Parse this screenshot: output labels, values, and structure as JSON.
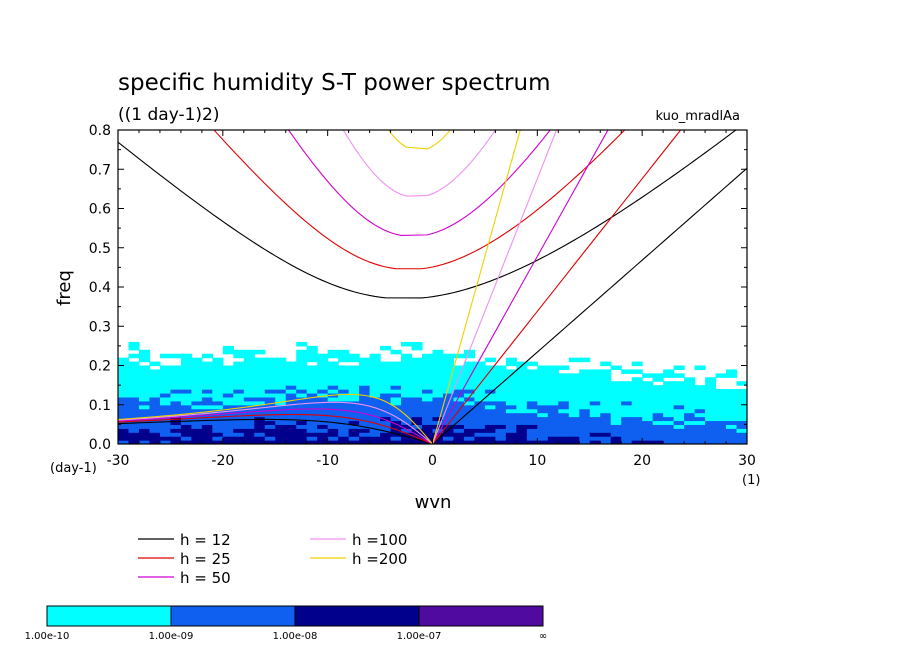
{
  "chart_data": {
    "type": "heatmap",
    "title": "specific humidity S-T power spectrum",
    "subtitle": "((1 day-1)2)",
    "run_label": "kuo_mradlAa",
    "xlabel": "wvn",
    "ylabel": "freq",
    "x_unit": "(1)",
    "y_unit": "(day-1)",
    "xlim": [
      -30,
      30
    ],
    "ylim": [
      0,
      0.8
    ],
    "xticks": [
      -30,
      -20,
      -10,
      0,
      10,
      20,
      30
    ],
    "yticks": [
      0.0,
      0.1,
      0.2,
      0.3,
      0.4,
      0.5,
      0.6,
      0.7,
      0.8
    ],
    "xtick_labels": [
      "-30",
      "-20",
      "-10",
      "0",
      "10",
      "20",
      "30"
    ],
    "ytick_labels": [
      "0.0",
      "0.1",
      "0.2",
      "0.3",
      "0.4",
      "0.5",
      "0.6",
      "0.7",
      "0.8"
    ],
    "colorbar": {
      "labels": [
        "1.00e-10",
        "1.00e-09",
        "1.00e-08",
        "1.00e-07",
        "∞"
      ],
      "colors": [
        "#00ffff",
        "#0f5ff0",
        "#00008c",
        "#500aa0"
      ]
    },
    "dispersion_curves": {
      "series": [
        {
          "name": "h = 12",
          "h": 12,
          "color": "#000000"
        },
        {
          "name": "h = 25",
          "h": 25,
          "color": "#e00000"
        },
        {
          "name": "h = 50",
          "h": 50,
          "color": "#d000d0"
        },
        {
          "name": "h =100",
          "h": 100,
          "color": "#f090f0"
        },
        {
          "name": "h =200",
          "h": 200,
          "color": "#f0d000"
        }
      ]
    }
  }
}
